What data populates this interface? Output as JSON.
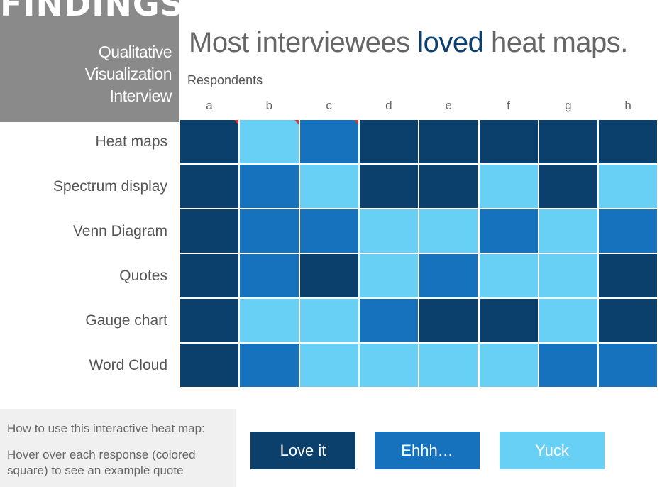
{
  "title": {
    "main": "FINDINGS",
    "sub_lines": [
      "Qualitative",
      "Visualization",
      "Interview"
    ]
  },
  "headline": {
    "before": "Most interviewees ",
    "highlight": "loved",
    "after": " heat maps."
  },
  "colors": {
    "love": "#0b3f6c",
    "ehh": "#1672bd",
    "yuck": "#68cff5",
    "flag": "#e0332f",
    "headline_highlight": "#0b4070"
  },
  "howto": {
    "title": "How to use this interactive heat map:",
    "text": "Hover over each response (colored square) to see an example quote"
  },
  "legend": [
    {
      "label": "Love it",
      "level": "love"
    },
    {
      "label": "Ehhh…",
      "level": "ehh"
    },
    {
      "label": "Yuck",
      "level": "yuck"
    }
  ],
  "chart_data": {
    "type": "heatmap",
    "title": "Most interviewees loved heat maps.",
    "xlabel": "Respondents",
    "x": [
      "a",
      "b",
      "c",
      "d",
      "e",
      "f",
      "g",
      "h"
    ],
    "y": [
      "Heat maps",
      "Spectrum display",
      "Venn Diagram",
      "Quotes",
      "Gauge chart",
      "Word Cloud"
    ],
    "categories_scale": [
      "Love it",
      "Ehhh…",
      "Yuck"
    ],
    "values": [
      [
        "Love it",
        "Yuck",
        "Ehhh…",
        "Love it",
        "Love it",
        "Love it",
        "Love it",
        "Love it"
      ],
      [
        "Love it",
        "Ehhh…",
        "Yuck",
        "Love it",
        "Love it",
        "Yuck",
        "Love it",
        "Yuck"
      ],
      [
        "Love it",
        "Ehhh…",
        "Ehhh…",
        "Yuck",
        "Yuck",
        "Ehhh…",
        "Yuck",
        "Ehhh…"
      ],
      [
        "Love it",
        "Ehhh…",
        "Love it",
        "Yuck",
        "Ehhh…",
        "Yuck",
        "Yuck",
        "Love it"
      ],
      [
        "Love it",
        "Yuck",
        "Yuck",
        "Ehhh…",
        "Love it",
        "Love it",
        "Yuck",
        "Love it"
      ],
      [
        "Love it",
        "Ehhh…",
        "Yuck",
        "Yuck",
        "Yuck",
        "Yuck",
        "Ehhh…",
        "Ehhh…"
      ]
    ],
    "flagged_cells": [
      [
        0,
        0
      ],
      [
        0,
        1
      ],
      [
        0,
        2
      ]
    ],
    "grid": false
  }
}
